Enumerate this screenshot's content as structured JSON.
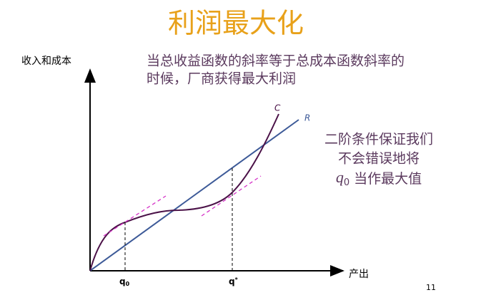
{
  "title": "利润最大化",
  "y_axis_label": "收入和成本",
  "x_axis_label": "产出",
  "top_note": [
    "当总收益函数的斜率等于总成本函数斜率的",
    "时候，厂商获得最大利润"
  ],
  "right_note": {
    "lines": [
      "二阶条件保证我们",
      "不会错误地将"
    ],
    "last_line": {
      "var": "q",
      "sub": "0",
      "text": "当作最大值"
    }
  },
  "curve_labels": {
    "cost": "C",
    "revenue": "R"
  },
  "x_marks": {
    "q0": {
      "var": "q",
      "sub": "0"
    },
    "qstar": {
      "var": "q",
      "sup": "*"
    }
  },
  "page_number": "11"
}
